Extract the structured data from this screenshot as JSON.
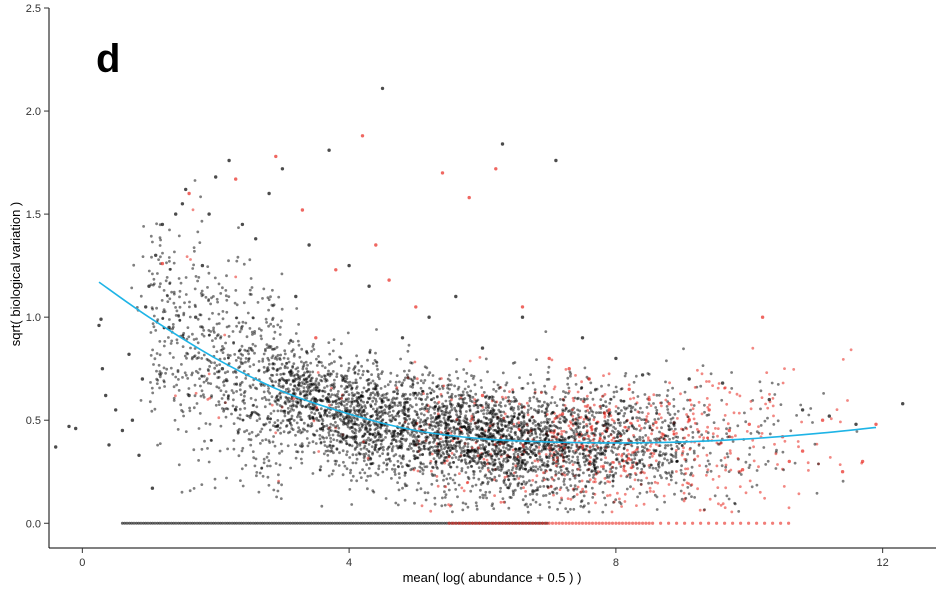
{
  "chart_data": {
    "type": "scatter",
    "panel_label": "d",
    "title": "",
    "xlabel": "mean( log( abundance + 0.5 ) )",
    "ylabel": "sqrt( biological variation )",
    "xlim": [
      -0.5,
      12.8
    ],
    "ylim": [
      -0.12,
      2.5
    ],
    "x_ticks": [
      0,
      4,
      8,
      12
    ],
    "x_tick_labels": [
      "0",
      "4",
      "8",
      "12"
    ],
    "y_ticks": [
      0.0,
      0.5,
      1.0,
      1.5,
      2.0,
      2.5
    ],
    "y_tick_labels": [
      "0.0",
      "0.5",
      "1.0",
      "1.5",
      "2.0",
      "2.5"
    ],
    "grid": false,
    "legend": "none",
    "colors": {
      "points_black": "#000000",
      "points_red": "#e8271e",
      "trend": "#1eb4e6"
    },
    "series": [
      {
        "color_key": "points_black",
        "x": [
          -0.4,
          -0.2,
          -0.1,
          0.25,
          0.28,
          0.3,
          0.35,
          0.4,
          0.5,
          0.6,
          0.7,
          0.75,
          0.85,
          0.95,
          1.0,
          1.05,
          1.1,
          1.2,
          1.3,
          1.4,
          1.5,
          1.55,
          1.7,
          1.8,
          1.9,
          2.0,
          2.1,
          2.2,
          2.4,
          2.6,
          2.8,
          3.0,
          3.2,
          3.4,
          3.7,
          4.0,
          4.3,
          4.5,
          4.8,
          5.2,
          5.6,
          6.0,
          6.3,
          6.6,
          7.1,
          7.5,
          8.0,
          8.4,
          9.1,
          9.6,
          10.3,
          10.8,
          11.2,
          11.6,
          12.3,
          0.9,
          1.6,
          2.3,
          3.1,
          3.6,
          4.1,
          5.0,
          5.8,
          6.8,
          7.8
        ],
        "y": [
          0.37,
          0.47,
          0.46,
          0.96,
          0.99,
          0.75,
          0.62,
          0.38,
          0.55,
          0.45,
          0.82,
          0.5,
          0.33,
          1.05,
          1.15,
          0.17,
          1.3,
          1.45,
          0.95,
          1.5,
          1.55,
          1.62,
          1.0,
          1.25,
          1.5,
          1.68,
          0.75,
          1.76,
          1.45,
          1.38,
          1.6,
          1.72,
          1.1,
          1.35,
          1.81,
          1.25,
          1.15,
          2.11,
          0.9,
          1.0,
          1.1,
          0.85,
          1.84,
          1.0,
          1.76,
          0.9,
          0.8,
          0.72,
          0.7,
          0.68,
          0.6,
          0.55,
          0.52,
          0.48,
          0.58,
          0.7,
          0.62,
          0.55,
          0.5,
          0.46,
          0.42,
          0.38,
          0.35,
          0.33,
          0.34
        ]
      },
      {
        "color_key": "points_red",
        "x": [
          1.2,
          1.6,
          2.3,
          2.9,
          3.3,
          3.8,
          4.2,
          4.6,
          5.0,
          5.4,
          5.8,
          6.2,
          6.6,
          7.0,
          7.3,
          7.6,
          7.9,
          8.2,
          8.5,
          8.8,
          9.1,
          9.4,
          9.7,
          10.0,
          10.2,
          10.5,
          10.8,
          11.1,
          11.4,
          11.7,
          11.9,
          3.5,
          4.4,
          6.0,
          7.2,
          8.6,
          9.9,
          10.6
        ],
        "y": [
          1.26,
          1.6,
          1.67,
          1.78,
          1.52,
          1.23,
          1.88,
          1.18,
          1.05,
          1.7,
          1.58,
          1.72,
          1.05,
          0.8,
          0.75,
          0.7,
          0.55,
          0.65,
          0.6,
          0.58,
          0.5,
          0.55,
          0.45,
          0.48,
          1.0,
          0.42,
          0.35,
          0.5,
          0.25,
          0.3,
          0.48,
          0.9,
          1.35,
          0.62,
          0.53,
          0.49,
          0.26,
          0.3
        ]
      }
    ],
    "zero_row": {
      "y": 0.0,
      "black_x_range": [
        0.6,
        7.0
      ],
      "red_x_range": [
        5.5,
        10.7
      ]
    },
    "trend": {
      "color_key": "trend",
      "x": [
        0.25,
        1.0,
        2.0,
        3.0,
        4.0,
        5.0,
        6.0,
        7.0,
        8.0,
        9.0,
        10.0,
        11.0,
        11.9
      ],
      "y": [
        1.17,
        1.0,
        0.8,
        0.64,
        0.53,
        0.45,
        0.41,
        0.395,
        0.39,
        0.395,
        0.41,
        0.435,
        0.465
      ]
    }
  }
}
